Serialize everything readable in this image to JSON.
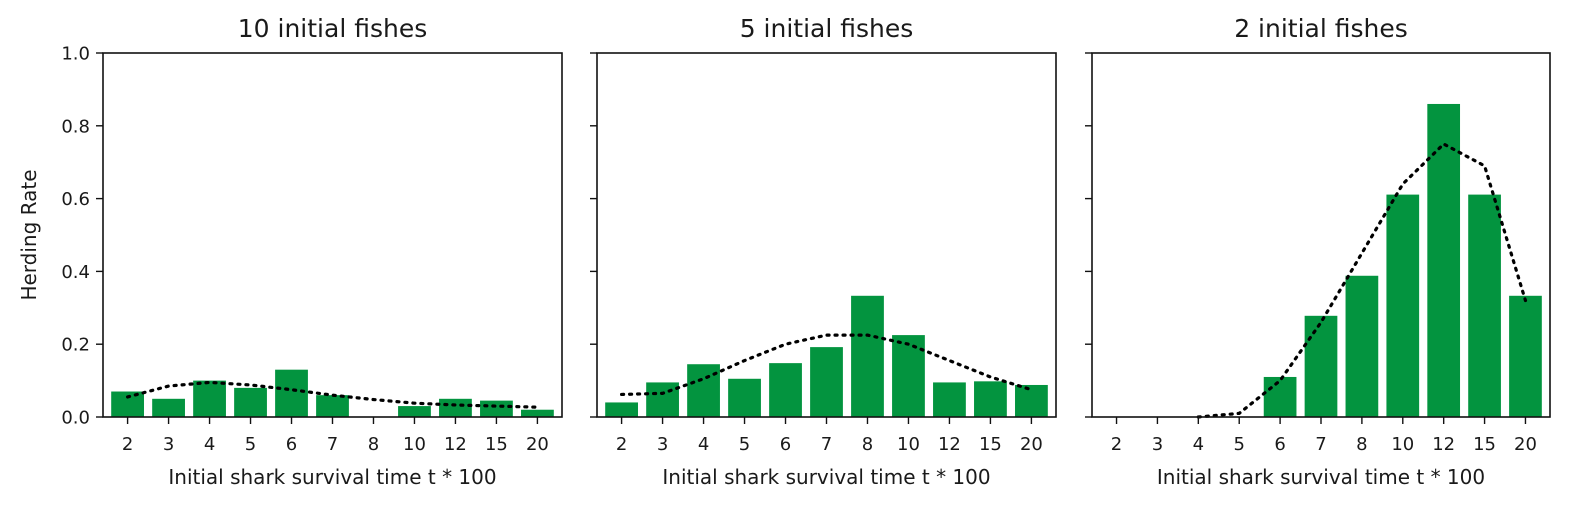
{
  "figure": {
    "ylabel": "Herding Rate",
    "xlabel": "Initial shark survival time t * 100",
    "bar_color": "#03943f",
    "trend_color": "#000000",
    "yticks": [
      "0.0",
      "0.2",
      "0.4",
      "0.6",
      "0.8",
      "1.0"
    ]
  },
  "chart_data": [
    {
      "type": "bar",
      "title": "10 initial fishes",
      "xlabel": "Initial shark survival time t * 100",
      "ylabel": "Herding Rate",
      "ylim": [
        0,
        1
      ],
      "categories": [
        "2",
        "3",
        "4",
        "5",
        "6",
        "7",
        "8",
        "10",
        "12",
        "15",
        "20"
      ],
      "values": [
        0.07,
        0.05,
        0.1,
        0.08,
        0.13,
        0.06,
        0.0,
        0.03,
        0.05,
        0.045,
        0.02
      ],
      "trend": [
        0.055,
        0.085,
        0.095,
        0.088,
        0.075,
        0.06,
        0.048,
        0.038,
        0.033,
        0.03,
        0.027
      ]
    },
    {
      "type": "bar",
      "title": "5 initial fishes",
      "xlabel": "Initial shark survival time t * 100",
      "ylabel": "Herding Rate",
      "ylim": [
        0,
        1
      ],
      "categories": [
        "2",
        "3",
        "4",
        "5",
        "6",
        "7",
        "8",
        "10",
        "12",
        "15",
        "20"
      ],
      "values": [
        0.04,
        0.095,
        0.145,
        0.105,
        0.148,
        0.192,
        0.333,
        0.225,
        0.095,
        0.098,
        0.088
      ],
      "trend": [
        0.062,
        0.065,
        0.105,
        0.155,
        0.2,
        0.225,
        0.225,
        0.2,
        0.155,
        0.11,
        0.075
      ]
    },
    {
      "type": "bar",
      "title": "2 initial fishes",
      "xlabel": "Initial shark survival time t * 100",
      "ylabel": "Herding Rate",
      "ylim": [
        0,
        1
      ],
      "categories": [
        "2",
        "3",
        "4",
        "5",
        "6",
        "7",
        "8",
        "10",
        "12",
        "15",
        "20"
      ],
      "values": [
        0.0,
        0.0,
        0.0,
        0.0,
        0.11,
        0.278,
        0.388,
        0.611,
        0.86,
        0.611,
        0.333
      ],
      "trend": [
        null,
        null,
        0.0,
        0.01,
        0.1,
        0.26,
        0.45,
        0.64,
        0.75,
        0.69,
        0.32
      ]
    }
  ]
}
